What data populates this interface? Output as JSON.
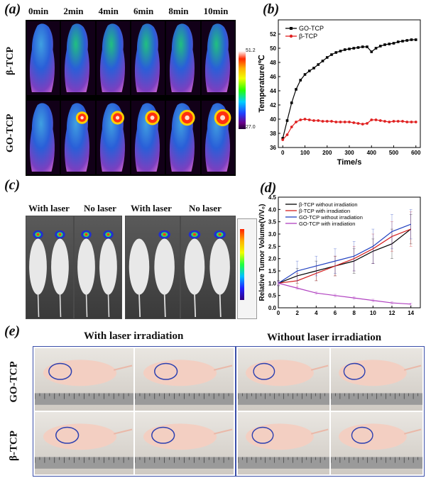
{
  "panels": {
    "a": "(a)",
    "b": "(b)",
    "c": "(c)",
    "d": "(d)",
    "e": "(e)"
  },
  "panel_a": {
    "times": [
      "0min",
      "2min",
      "4min",
      "6min",
      "8min",
      "10min"
    ],
    "rows": [
      "β-TCP",
      "GO-TCP"
    ],
    "colorbar_max": "51.2",
    "colorbar_min": "27.0"
  },
  "panel_c": {
    "labels": [
      "With laser",
      "No laser",
      "With laser",
      "No laser"
    ]
  },
  "panel_e": {
    "left_title": "With laser irradiation",
    "right_title": "Without laser irradiation",
    "rows": [
      "GO-TCP",
      "β-TCP"
    ]
  },
  "chart_data": [
    {
      "type": "line",
      "panel": "b",
      "xlabel": "Time/s",
      "ylabel": "Temperature/℃",
      "xlim": [
        -20,
        620
      ],
      "ylim": [
        36,
        54
      ],
      "xticks": [
        0,
        100,
        200,
        300,
        400,
        500,
        600
      ],
      "yticks": [
        36,
        38,
        40,
        42,
        44,
        46,
        48,
        50,
        52
      ],
      "legend": "top-left",
      "series": [
        {
          "name": "GO-TCP",
          "color": "#000000",
          "marker": "square",
          "x": [
            0,
            20,
            40,
            60,
            80,
            100,
            120,
            140,
            160,
            180,
            200,
            220,
            240,
            260,
            280,
            300,
            320,
            340,
            360,
            380,
            400,
            420,
            440,
            460,
            480,
            500,
            520,
            540,
            560,
            580,
            600
          ],
          "y": [
            37.3,
            39.8,
            42.3,
            44.2,
            45.5,
            46.3,
            46.8,
            47.2,
            47.7,
            48.2,
            48.7,
            49.1,
            49.4,
            49.6,
            49.8,
            49.9,
            50.0,
            50.1,
            50.2,
            50.2,
            49.5,
            50.0,
            50.3,
            50.5,
            50.6,
            50.7,
            50.9,
            51.0,
            51.1,
            51.2,
            51.2
          ]
        },
        {
          "name": "β-TCP",
          "color": "#e02020",
          "marker": "circle",
          "x": [
            0,
            20,
            40,
            60,
            80,
            100,
            120,
            140,
            160,
            180,
            200,
            220,
            240,
            260,
            280,
            300,
            320,
            340,
            360,
            380,
            400,
            420,
            440,
            460,
            480,
            500,
            520,
            540,
            560,
            580,
            600
          ],
          "y": [
            37.1,
            37.8,
            38.9,
            39.6,
            39.9,
            40.0,
            39.9,
            39.8,
            39.8,
            39.7,
            39.7,
            39.7,
            39.6,
            39.6,
            39.6,
            39.6,
            39.5,
            39.4,
            39.3,
            39.4,
            39.9,
            39.9,
            39.8,
            39.7,
            39.6,
            39.7,
            39.7,
            39.7,
            39.6,
            39.6,
            39.6
          ]
        }
      ]
    },
    {
      "type": "line",
      "panel": "d",
      "xlabel": "",
      "ylabel": "Relative Tumor Volume(V/V₀)",
      "xlim": [
        0,
        15
      ],
      "ylim": [
        0,
        4.5
      ],
      "xticks": [
        0,
        2,
        4,
        6,
        8,
        10,
        12,
        14
      ],
      "yticks": [
        0.0,
        0.5,
        1.0,
        1.5,
        2.0,
        2.5,
        3.0,
        3.5,
        4.0,
        4.5
      ],
      "legend": "top-left",
      "series": [
        {
          "name": "β-TCP without irradiation",
          "color": "#000000",
          "x": [
            0,
            2,
            4,
            6,
            8,
            10,
            12,
            14
          ],
          "y": [
            1.0,
            1.3,
            1.5,
            1.7,
            1.9,
            2.3,
            2.6,
            3.2
          ],
          "err": [
            0.1,
            0.3,
            0.4,
            0.4,
            0.5,
            0.5,
            0.6,
            0.6
          ]
        },
        {
          "name": "β-TCP with irradiation",
          "color": "#d42020",
          "x": [
            0,
            2,
            4,
            6,
            8,
            10,
            12,
            14
          ],
          "y": [
            1.0,
            1.1,
            1.4,
            1.7,
            2.0,
            2.4,
            2.9,
            3.2
          ],
          "err": [
            0.1,
            0.3,
            0.3,
            0.4,
            0.5,
            0.6,
            0.6,
            0.7
          ]
        },
        {
          "name": "GO-TCP without irradiation",
          "color": "#2040c0",
          "x": [
            0,
            2,
            4,
            6,
            8,
            10,
            12,
            14
          ],
          "y": [
            1.0,
            1.5,
            1.7,
            1.9,
            2.1,
            2.5,
            3.1,
            3.4
          ],
          "err": [
            0.1,
            0.4,
            0.4,
            0.5,
            0.6,
            0.7,
            0.7,
            0.6
          ]
        },
        {
          "name": "GO-TCP with irradiation",
          "color": "#b040c0",
          "x": [
            0,
            2,
            4,
            6,
            8,
            10,
            12,
            14
          ],
          "y": [
            1.0,
            0.8,
            0.6,
            0.5,
            0.4,
            0.3,
            0.2,
            0.15
          ],
          "err": [
            0.05,
            0.05,
            0.05,
            0.05,
            0.05,
            0.05,
            0.05,
            0.04
          ]
        }
      ]
    }
  ]
}
